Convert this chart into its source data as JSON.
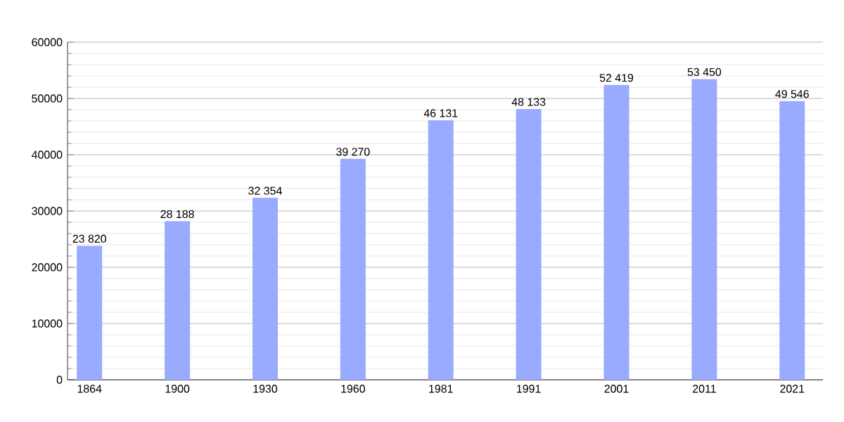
{
  "chart_data": {
    "type": "bar",
    "categories": [
      "1864",
      "1900",
      "1930",
      "1960",
      "1981",
      "1991",
      "2001",
      "2011",
      "2021"
    ],
    "values": [
      23820,
      28188,
      32354,
      39270,
      46131,
      48133,
      52419,
      53450,
      49546
    ],
    "value_labels": [
      "23 820",
      "28 188",
      "32 354",
      "39 270",
      "46 131",
      "48 133",
      "52 419",
      "53 450",
      "49 546"
    ],
    "color": "#99aaff",
    "ylim": [
      0,
      60000
    ],
    "yticks": [
      0,
      10000,
      20000,
      30000,
      40000,
      50000,
      60000
    ],
    "grid": "y"
  }
}
